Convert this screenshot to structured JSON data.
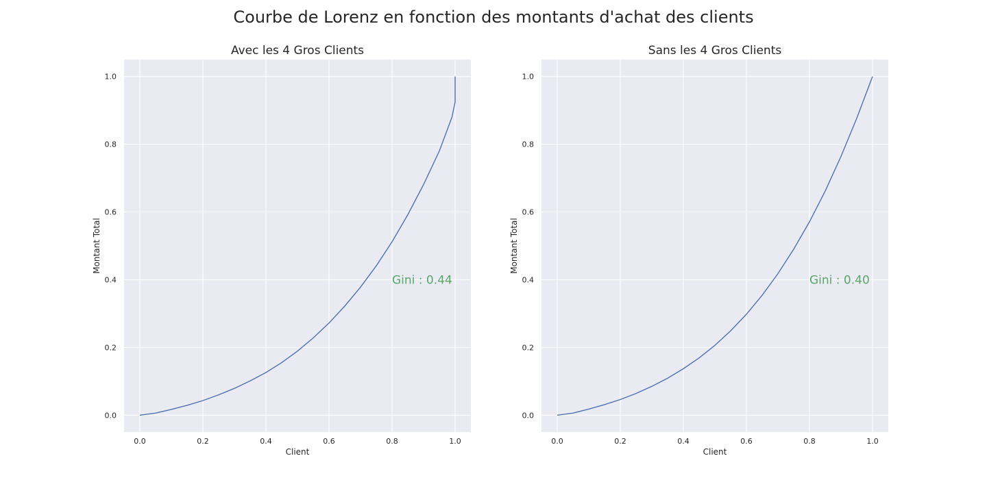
{
  "figure": {
    "title": "Courbe de Lorenz en fonction des montants d'achat des clients"
  },
  "colors": {
    "line": "#4c72b0",
    "annotation": "#55a868",
    "panel_bg": "#eaeaf2",
    "grid": "#ffffff"
  },
  "chart_data": [
    {
      "type": "line",
      "title": "Avec les 4 Gros Clients",
      "xlabel": "Client",
      "ylabel": "Montant Total",
      "xlim": [
        -0.05,
        1.05
      ],
      "ylim": [
        -0.05,
        1.05
      ],
      "xticks": [
        "0.0",
        "0.2",
        "0.4",
        "0.6",
        "0.8",
        "1.0"
      ],
      "yticks": [
        "0.0",
        "0.2",
        "0.4",
        "0.6",
        "0.8",
        "1.0"
      ],
      "grid": true,
      "series": [
        {
          "x": [
            0.0,
            0.05,
            0.1,
            0.15,
            0.2,
            0.25,
            0.3,
            0.35,
            0.4,
            0.45,
            0.5,
            0.55,
            0.6,
            0.65,
            0.7,
            0.75,
            0.8,
            0.85,
            0.9,
            0.95,
            0.99,
            1.0,
            1.0
          ],
          "y": [
            0.0,
            0.006,
            0.017,
            0.029,
            0.043,
            0.06,
            0.079,
            0.101,
            0.126,
            0.155,
            0.189,
            0.228,
            0.272,
            0.322,
            0.378,
            0.441,
            0.512,
            0.592,
            0.681,
            0.78,
            0.88,
            0.925,
            1.0
          ]
        }
      ],
      "annotation": {
        "text": "Gini : 0.44",
        "x": 0.8,
        "y": 0.4
      }
    },
    {
      "type": "line",
      "title": "Sans les 4 Gros Clients",
      "xlabel": "Client",
      "ylabel": "Montant Total",
      "xlim": [
        -0.05,
        1.05
      ],
      "ylim": [
        -0.05,
        1.05
      ],
      "xticks": [
        "0.0",
        "0.2",
        "0.4",
        "0.6",
        "0.8",
        "1.0"
      ],
      "yticks": [
        "0.0",
        "0.2",
        "0.4",
        "0.6",
        "0.8",
        "1.0"
      ],
      "grid": true,
      "series": [
        {
          "x": [
            0.0,
            0.05,
            0.1,
            0.15,
            0.2,
            0.25,
            0.3,
            0.35,
            0.4,
            0.45,
            0.5,
            0.55,
            0.6,
            0.65,
            0.7,
            0.75,
            0.8,
            0.85,
            0.9,
            0.95,
            1.0
          ],
          "y": [
            0.0,
            0.006,
            0.018,
            0.031,
            0.046,
            0.064,
            0.085,
            0.109,
            0.137,
            0.169,
            0.206,
            0.249,
            0.298,
            0.354,
            0.418,
            0.49,
            0.571,
            0.662,
            0.764,
            0.877,
            1.0
          ]
        }
      ],
      "annotation": {
        "text": "Gini : 0.40",
        "x": 0.8,
        "y": 0.4
      }
    }
  ]
}
